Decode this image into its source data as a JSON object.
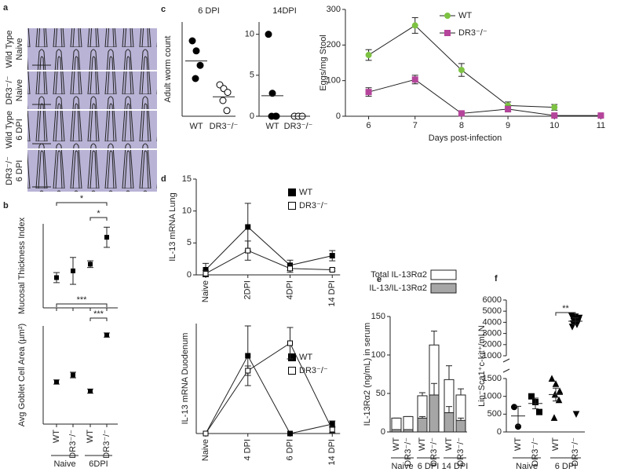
{
  "chart_data": [
    {
      "type": "image",
      "panel_label": "a",
      "row_labels": [
        [
          "Wild Type",
          "Naive"
        ],
        [
          "DR3⁻/⁻",
          "Naive"
        ],
        [
          "Wild Type",
          "6 DPI"
        ],
        [
          "DR3⁻/⁻",
          "6 DPI"
        ]
      ]
    },
    {
      "type": "dot",
      "panel_label": "b",
      "ylabel": "Mucosal Thickness Index",
      "values": [
        34,
        36,
        38,
        46
      ],
      "errors": [
        1.5,
        4,
        1,
        3
      ],
      "ylim": [
        25,
        50
      ],
      "annotations": [
        "*",
        "*"
      ]
    },
    {
      "type": "dot",
      "ylabel": "Avg Goblet Cell Area (µm²)",
      "categories": [
        "WT",
        "DR3⁻/⁻",
        "WT",
        "DR3⁻/⁻"
      ],
      "groups": [
        "Naive",
        "6DPI"
      ],
      "values": [
        60,
        70,
        47,
        127
      ],
      "errors": [
        3,
        4,
        3,
        3
      ],
      "ylim": [
        0,
        140
      ],
      "annotations": [
        "***",
        "***"
      ]
    },
    {
      "type": "strip",
      "panel_label": "c",
      "title": "6 DPI",
      "ylabel": "Adult worm count",
      "categories": [
        "WT",
        "DR3⁻/⁻"
      ],
      "fills": [
        "#000000",
        "#ffffff"
      ],
      "points": [
        [
          120,
          104,
          81,
          60
        ],
        [
          50,
          44,
          38,
          25,
          9
        ]
      ],
      "medians": [
        88,
        31
      ],
      "ylim": [
        0,
        150
      ]
    },
    {
      "type": "strip",
      "title": "14DPI",
      "categories": [
        "WT",
        "DR3⁻/⁻"
      ],
      "fills": [
        "#000000",
        "#ffffff"
      ],
      "points": [
        [
          10,
          2.8,
          0,
          0,
          0
        ],
        [
          0,
          0,
          0
        ]
      ],
      "medians": [
        2.5,
        0
      ],
      "ylim": [
        0,
        11.5
      ],
      "yticks": [
        0,
        5,
        10
      ]
    },
    {
      "type": "line",
      "xlabel": "Days post-infection",
      "ylabel": "Eggs/mg Stool",
      "x": [
        6,
        7,
        8,
        9,
        10,
        11
      ],
      "xlim": [
        5.5,
        11.5
      ],
      "xticks": [
        6,
        7,
        8,
        9,
        10,
        11
      ],
      "ylim": [
        0,
        300
      ],
      "yticks": [
        0,
        100,
        200,
        300
      ],
      "series": [
        {
          "name": "WT",
          "color": "#7dc242",
          "marker": "circle",
          "values": [
            172,
            255,
            130,
            30,
            25,
            null
          ],
          "errors": [
            15,
            22,
            18,
            10,
            8,
            null
          ]
        },
        {
          "name": "DR3⁻/⁻",
          "color": "#b5449b",
          "marker": "square",
          "values": [
            68,
            103,
            8,
            20,
            2,
            2
          ],
          "errors": [
            12,
            12,
            3,
            8,
            2,
            2
          ]
        }
      ]
    },
    {
      "type": "category-line",
      "panel_label": "d",
      "ylabel": "IL-13 mRNA Lung",
      "categories": [
        "Naive",
        "2DPI",
        "4DPI",
        "14 DPI"
      ],
      "ylim": [
        0,
        15
      ],
      "yticks": [
        0,
        5,
        10,
        15
      ],
      "series": [
        {
          "name": "WT",
          "color": "#000000",
          "values": [
            0.8,
            7.5,
            1.5,
            3
          ],
          "errors": [
            1,
            3.7,
            0.8,
            0.8
          ]
        },
        {
          "name": "DR3⁻/⁻",
          "color": "#ffffff",
          "values": [
            0.2,
            3.8,
            1,
            0.8
          ],
          "errors": [
            0.5,
            1.5,
            0.6,
            0.2
          ]
        }
      ]
    },
    {
      "type": "category-line",
      "ylabel": "IL-13 mRNA Duodenum",
      "categories": [
        "Naive",
        "4 DPI",
        "6 DPI",
        "14 DPI"
      ],
      "ylim": [
        0,
        140
      ],
      "series": [
        {
          "name": "WT",
          "color": "#000000",
          "values": [
            0,
            99,
            0,
            12
          ],
          "errors": [
            0,
            38,
            0,
            4
          ]
        },
        {
          "name": "DR3⁻/⁻",
          "color": "#ffffff",
          "values": [
            0,
            80,
            115,
            5
          ],
          "errors": [
            0,
            6,
            20,
            4
          ]
        }
      ]
    },
    {
      "type": "overlap-bar",
      "panel_label": "e",
      "ylabel": "IL-13Rα2 (ng/mL) in serum",
      "categories": [
        "WT",
        "DR3⁻/⁻",
        "WT",
        "DR3⁻/⁻",
        "WT",
        "DR3⁻/⁻"
      ],
      "groups": [
        "Naive",
        "6 DPI",
        "14 DPI"
      ],
      "ylim": [
        0,
        150
      ],
      "yticks": [
        0,
        50,
        100,
        150
      ],
      "series": [
        {
          "name": "Total IL-13Rα2",
          "color": "#ffffff",
          "values": [
            18,
            20,
            47,
            113,
            68,
            48
          ],
          "errors": [
            0,
            0,
            4,
            18,
            18,
            8
          ]
        },
        {
          "name": "IL-13/IL-13Rα2",
          "color": "#a6a6a6",
          "values": [
            3,
            3,
            18,
            48,
            25,
            15
          ],
          "errors": [
            0,
            0,
            2,
            15,
            8,
            3
          ]
        }
      ]
    },
    {
      "type": "broken-strip",
      "panel_label": "f",
      "ylabel": "Lin⁻Sca1⁺c-kit⁺/mLN",
      "categories": [
        "WT",
        "DR3⁻/⁻",
        "WT",
        "DR3⁻/⁻"
      ],
      "groups": [
        "Naive",
        "6 DPI"
      ],
      "markers": [
        "circle",
        "square",
        "triangle",
        "triangle-down"
      ],
      "points": [
        [
          700,
          150
        ],
        [
          1000,
          840,
          560
        ],
        [
          1500,
          1350,
          1150,
          1050,
          900,
          400
        ],
        [
          4600,
          4500,
          4400,
          4300,
          4200,
          4100,
          4000,
          3900,
          3800,
          3600,
          500
        ]
      ],
      "means": [
        450,
        800,
        1050,
        4100
      ],
      "errors": [
        270,
        150,
        180,
        300
      ],
      "ylim": [
        0,
        1500
      ],
      "yticks": [
        0,
        500,
        1000,
        1500
      ],
      "ylim_upper": [
        1000,
        6000
      ],
      "yticks_upper": [
        1000,
        2000,
        3000,
        4000,
        5000,
        6000
      ],
      "annotations": [
        "**"
      ]
    }
  ]
}
